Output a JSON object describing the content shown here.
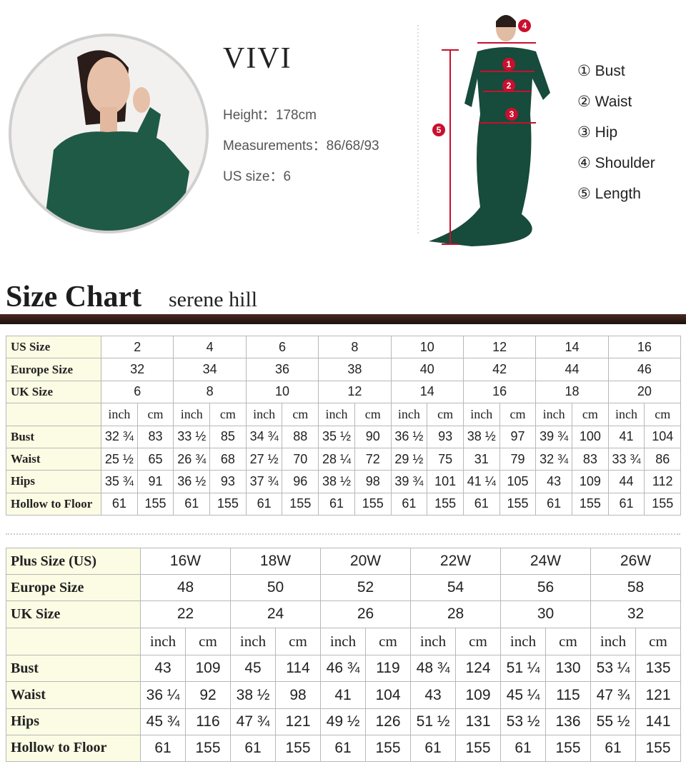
{
  "model": {
    "name": "VIVI",
    "lines": [
      "Height：178cm",
      "Measurements：86/68/93",
      "US size：6"
    ]
  },
  "measure_points": {
    "markers": [
      "4",
      "1",
      "2",
      "3",
      "5"
    ],
    "legend": [
      "① Bust",
      "② Waist",
      "③ Hip",
      "④ Shoulder",
      "⑤ Length"
    ]
  },
  "heading": {
    "title": "Size Chart",
    "brand": "serene hill"
  },
  "table1": {
    "size_rows": [
      [
        "US Size",
        "2",
        "4",
        "6",
        "8",
        "10",
        "12",
        "14",
        "16"
      ],
      [
        "Europe Size",
        "32",
        "34",
        "36",
        "38",
        "40",
        "42",
        "44",
        "46"
      ],
      [
        "UK Size",
        "6",
        "8",
        "10",
        "12",
        "14",
        "16",
        "18",
        "20"
      ]
    ],
    "units": [
      "inch",
      "cm"
    ],
    "rows": [
      [
        "Bust",
        "32 ¾",
        "83",
        "33 ½",
        "85",
        "34 ¾",
        "88",
        "35 ½",
        "90",
        "36 ½",
        "93",
        "38 ½",
        "97",
        "39 ¾",
        "100",
        "41",
        "104"
      ],
      [
        "Waist",
        "25 ½",
        "65",
        "26 ¾",
        "68",
        "27 ½",
        "70",
        "28 ¼",
        "72",
        "29 ½",
        "75",
        "31",
        "79",
        "32 ¾",
        "83",
        "33 ¾",
        "86"
      ],
      [
        "Hips",
        "35 ¾",
        "91",
        "36 ½",
        "93",
        "37 ¾",
        "96",
        "38 ½",
        "98",
        "39 ¾",
        "101",
        "41 ¼",
        "105",
        "43",
        "109",
        "44",
        "112"
      ],
      [
        "Hollow to Floor",
        "61",
        "155",
        "61",
        "155",
        "61",
        "155",
        "61",
        "155",
        "61",
        "155",
        "61",
        "155",
        "61",
        "155",
        "61",
        "155"
      ]
    ]
  },
  "table2": {
    "size_rows": [
      [
        "Plus Size (US)",
        "16W",
        "18W",
        "20W",
        "22W",
        "24W",
        "26W"
      ],
      [
        "Europe Size",
        "48",
        "50",
        "52",
        "54",
        "56",
        "58"
      ],
      [
        "UK Size",
        "22",
        "24",
        "26",
        "28",
        "30",
        "32"
      ]
    ],
    "units": [
      "inch",
      "cm"
    ],
    "rows": [
      [
        "Bust",
        "43",
        "109",
        "45",
        "114",
        "46 ¾",
        "119",
        "48 ¾",
        "124",
        "51 ¼",
        "130",
        "53 ¼",
        "135"
      ],
      [
        "Waist",
        "36 ¼",
        "92",
        "38 ½",
        "98",
        "41",
        "104",
        "43",
        "109",
        "45 ¼",
        "115",
        "47 ¾",
        "121"
      ],
      [
        "Hips",
        "45 ¾",
        "116",
        "47 ¾",
        "121",
        "49 ½",
        "126",
        "51 ½",
        "131",
        "53 ½",
        "136",
        "55 ½",
        "141"
      ],
      [
        "Hollow to Floor",
        "61",
        "155",
        "61",
        "155",
        "61",
        "155",
        "61",
        "155",
        "61",
        "155",
        "61",
        "155"
      ]
    ]
  }
}
